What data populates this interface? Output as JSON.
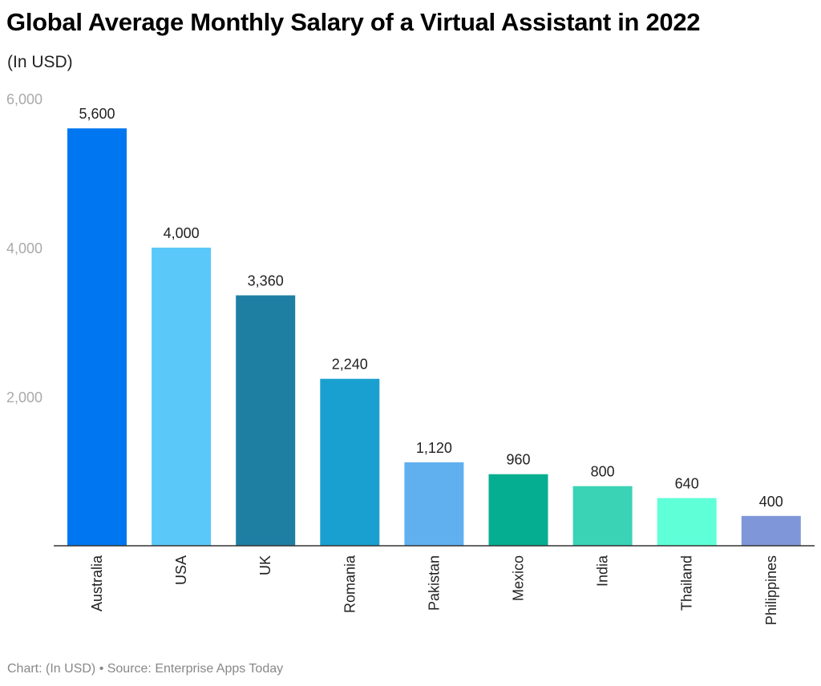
{
  "title": "Global Average Monthly Salary of a Virtual Assistant in 2022",
  "subtitle": "(In USD)",
  "footer": "Chart: (In USD) • Source: Enterprise Apps Today",
  "chart_data": {
    "type": "bar",
    "title": "Global Average Monthly Salary of a Virtual Assistant in 2022",
    "subtitle": "(In USD)",
    "categories": [
      "Australia",
      "USA",
      "UK",
      "Romania",
      "Pakistan",
      "Mexico",
      "India",
      "Thailand",
      "Philippines"
    ],
    "values": [
      5600,
      4000,
      3360,
      2240,
      1120,
      960,
      800,
      640,
      400
    ],
    "value_labels": [
      "5,600",
      "4,000",
      "3,360",
      "2,240",
      "1,120",
      "960",
      "800",
      "640",
      "400"
    ],
    "colors": [
      "#0077F0",
      "#5AC8F8",
      "#1F7FA3",
      "#1AA0D0",
      "#60B0F0",
      "#05AE90",
      "#3AD3B5",
      "#5FFFD8",
      "#7F96D8"
    ],
    "yticks": [
      2000,
      4000,
      6000
    ],
    "ytick_labels": [
      "2,000",
      "4,000",
      "6,000"
    ],
    "ylim": [
      0,
      6000
    ],
    "xlabel": "",
    "ylabel": "",
    "grid": false,
    "legend": "none"
  }
}
